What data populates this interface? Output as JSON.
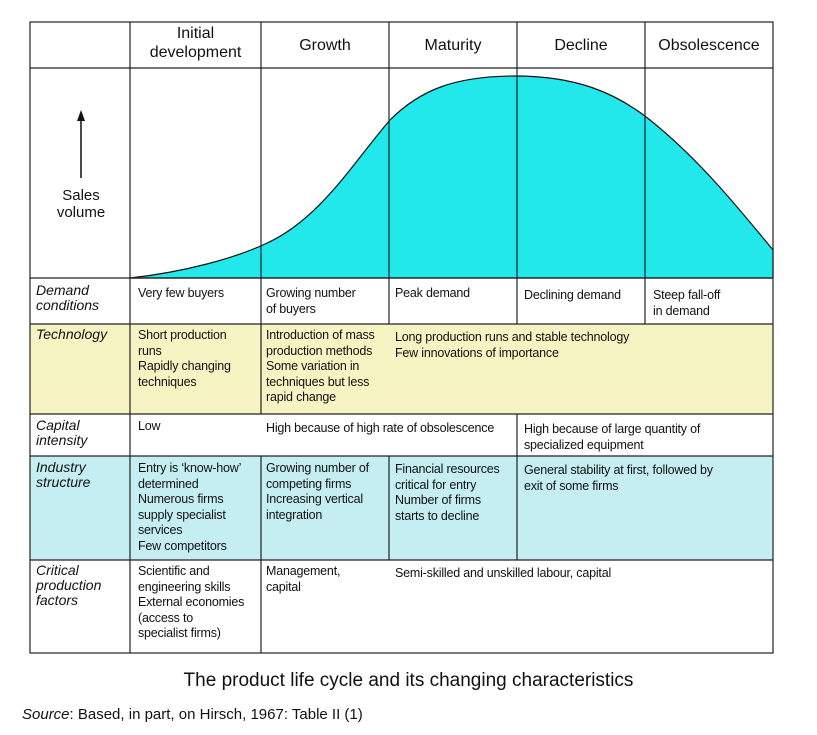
{
  "columns": [
    "Initial\ndevelopment",
    "Growth",
    "Maturity",
    "Decline",
    "Obsolescence"
  ],
  "y_axis_label": "Sales\nvolume",
  "rows": [
    {
      "label": "Demand\nconditions",
      "cells": [
        "Very few buyers",
        "Growing number\nof buyers",
        "Peak demand",
        "Declining demand",
        "Steep fall-off\nin demand"
      ]
    },
    {
      "label": "Technology",
      "cells": [
        "Short production\nruns\nRapidly changing\ntechniques",
        "Introduction of mass\nproduction methods\nSome variation in\ntechniques but less\nrapid change",
        "Long production runs and stable technology\nFew innovations of importance"
      ]
    },
    {
      "label": "Capital\nintensity",
      "cells": [
        "Low",
        "High because of high rate of obsolescence",
        "High because of large quantity of\nspecialized equipment"
      ]
    },
    {
      "label": "Industry\nstructure",
      "cells": [
        "Entry is ‘know-how’\ndetermined\nNumerous firms\nsupply specialist\nservices\nFew competitors",
        "Growing number of\ncompeting firms\nIncreasing vertical\nintegration",
        "Financial resources\ncritical for entry\nNumber of firms\nstarts to decline",
        "General stability at first, followed by\nexit of some firms"
      ]
    },
    {
      "label": "Critical\nproduction\nfactors",
      "cells": [
        "Scientific and\nengineering skills\nExternal economies\n(access to\nspecialist firms)",
        "Management,\ncapital",
        "Semi-skilled and unskilled labour, capital"
      ]
    }
  ],
  "caption": "The product life cycle and its changing characteristics",
  "source_label": "Source",
  "source_text": ":  Based, in part, on Hirsch, 1967: Table II (1)",
  "colors": {
    "curve_fill": "#22e8ec",
    "yellow_row": "#f7f4c4",
    "cyan_row": "#c4eef2",
    "lines": "#222222"
  }
}
